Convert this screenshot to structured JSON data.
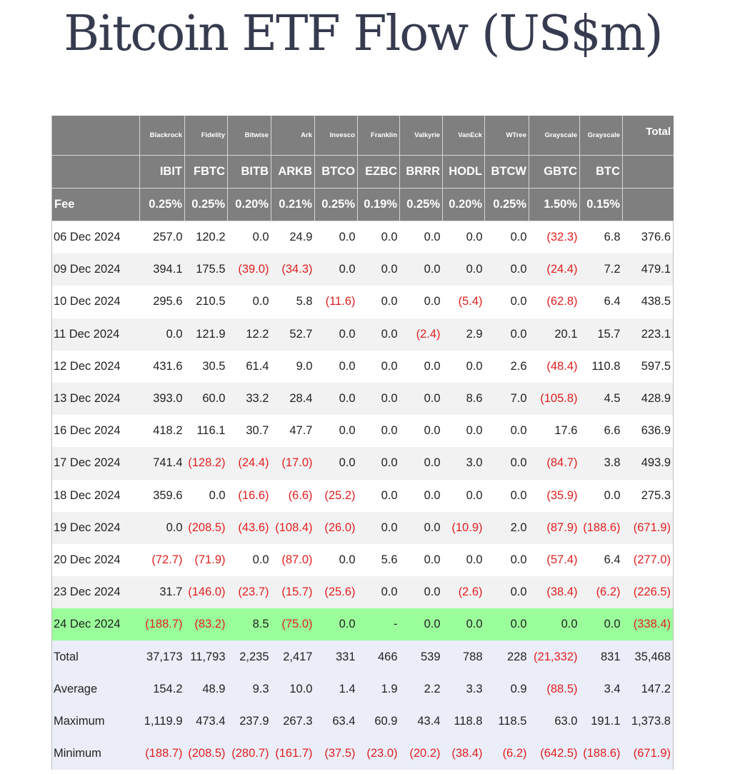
{
  "title": "Bitcoin ETF Flow (US$m)",
  "columns": [
    {
      "issuer": "Blackrock",
      "ticker": "IBIT",
      "fee": "0.25%"
    },
    {
      "issuer": "Fidelity",
      "ticker": "FBTC",
      "fee": "0.25%"
    },
    {
      "issuer": "Bitwise",
      "ticker": "BITB",
      "fee": "0.20%"
    },
    {
      "issuer": "Ark",
      "ticker": "ARKB",
      "fee": "0.21%"
    },
    {
      "issuer": "Invesco",
      "ticker": "BTCO",
      "fee": "0.25%"
    },
    {
      "issuer": "Franklin",
      "ticker": "EZBC",
      "fee": "0.19%"
    },
    {
      "issuer": "Valkyrie",
      "ticker": "BRRR",
      "fee": "0.25%"
    },
    {
      "issuer": "VanEck",
      "ticker": "HODL",
      "fee": "0.20%"
    },
    {
      "issuer": "WTree",
      "ticker": "BTCW",
      "fee": "0.25%"
    },
    {
      "issuer": "Grayscale",
      "ticker": "GBTC",
      "fee": "1.50%"
    },
    {
      "issuer": "Grayscale",
      "ticker": "BTC",
      "fee": "0.15%"
    }
  ],
  "total_header": "Total",
  "fee_label": "Fee",
  "rows": [
    {
      "date": "06 Dec 2024",
      "values": [
        "257.0",
        "120.2",
        "0.0",
        "24.9",
        "0.0",
        "0.0",
        "0.0",
        "0.0",
        "0.0",
        "(32.3)",
        "6.8",
        "376.6"
      ]
    },
    {
      "date": "09 Dec 2024",
      "values": [
        "394.1",
        "175.5",
        "(39.0)",
        "(34.3)",
        "0.0",
        "0.0",
        "0.0",
        "0.0",
        "0.0",
        "(24.4)",
        "7.2",
        "479.1"
      ]
    },
    {
      "date": "10 Dec 2024",
      "values": [
        "295.6",
        "210.5",
        "0.0",
        "5.8",
        "(11.6)",
        "0.0",
        "0.0",
        "(5.4)",
        "0.0",
        "(62.8)",
        "6.4",
        "438.5"
      ]
    },
    {
      "date": "11 Dec 2024",
      "values": [
        "0.0",
        "121.9",
        "12.2",
        "52.7",
        "0.0",
        "0.0",
        "(2.4)",
        "2.9",
        "0.0",
        "20.1",
        "15.7",
        "223.1"
      ]
    },
    {
      "date": "12 Dec 2024",
      "values": [
        "431.6",
        "30.5",
        "61.4",
        "9.0",
        "0.0",
        "0.0",
        "0.0",
        "0.0",
        "2.6",
        "(48.4)",
        "110.8",
        "597.5"
      ]
    },
    {
      "date": "13 Dec 2024",
      "values": [
        "393.0",
        "60.0",
        "33.2",
        "28.4",
        "0.0",
        "0.0",
        "0.0",
        "8.6",
        "7.0",
        "(105.8)",
        "4.5",
        "428.9"
      ]
    },
    {
      "date": "16 Dec 2024",
      "values": [
        "418.2",
        "116.1",
        "30.7",
        "47.7",
        "0.0",
        "0.0",
        "0.0",
        "0.0",
        "0.0",
        "17.6",
        "6.6",
        "636.9"
      ]
    },
    {
      "date": "17 Dec 2024",
      "values": [
        "741.4",
        "(128.2)",
        "(24.4)",
        "(17.0)",
        "0.0",
        "0.0",
        "0.0",
        "3.0",
        "0.0",
        "(84.7)",
        "3.8",
        "493.9"
      ]
    },
    {
      "date": "18 Dec 2024",
      "values": [
        "359.6",
        "0.0",
        "(16.6)",
        "(6.6)",
        "(25.2)",
        "0.0",
        "0.0",
        "0.0",
        "0.0",
        "(35.9)",
        "0.0",
        "275.3"
      ]
    },
    {
      "date": "19 Dec 2024",
      "values": [
        "0.0",
        "(208.5)",
        "(43.6)",
        "(108.4)",
        "(26.0)",
        "0.0",
        "0.0",
        "(10.9)",
        "2.0",
        "(87.9)",
        "(188.6)",
        "(671.9)"
      ]
    },
    {
      "date": "20 Dec 2024",
      "values": [
        "(72.7)",
        "(71.9)",
        "0.0",
        "(87.0)",
        "0.0",
        "5.6",
        "0.0",
        "0.0",
        "0.0",
        "(57.4)",
        "6.4",
        "(277.0)"
      ]
    },
    {
      "date": "23 Dec 2024",
      "values": [
        "31.7",
        "(146.0)",
        "(23.7)",
        "(15.7)",
        "(25.6)",
        "0.0",
        "0.0",
        "(2.6)",
        "0.0",
        "(38.4)",
        "(6.2)",
        "(226.5)"
      ]
    },
    {
      "date": "24 Dec 2024",
      "highlight": true,
      "values": [
        "(188.7)",
        "(83.2)",
        "8.5",
        "(75.0)",
        "0.0",
        "-",
        "0.0",
        "0.0",
        "0.0",
        "0.0",
        "0.0",
        "(338.4)"
      ]
    }
  ],
  "stats": [
    {
      "label": "Total",
      "values": [
        "37,173",
        "11,793",
        "2,235",
        "2,417",
        "331",
        "466",
        "539",
        "788",
        "228",
        "(21,332)",
        "831",
        "35,468"
      ]
    },
    {
      "label": "Average",
      "values": [
        "154.2",
        "48.9",
        "9.3",
        "10.0",
        "1.4",
        "1.9",
        "2.2",
        "3.3",
        "0.9",
        "(88.5)",
        "3.4",
        "147.2"
      ]
    },
    {
      "label": "Maximum",
      "values": [
        "1,119.9",
        "473.4",
        "237.9",
        "267.3",
        "63.4",
        "60.9",
        "43.4",
        "118.8",
        "118.5",
        "63.0",
        "191.1",
        "1,373.8"
      ]
    },
    {
      "label": "Minimum",
      "values": [
        "(188.7)",
        "(208.5)",
        "(280.7)",
        "(161.7)",
        "(37.5)",
        "(23.0)",
        "(20.2)",
        "(38.4)",
        "(6.2)",
        "(642.5)",
        "(188.6)",
        "(671.9)"
      ]
    }
  ],
  "colors": {
    "header_bg": "#7f7f7f",
    "negative": "#e02020",
    "highlight_row": "#9aff9a",
    "stats_bg": "#ebeef8",
    "title": "#373b4f"
  }
}
